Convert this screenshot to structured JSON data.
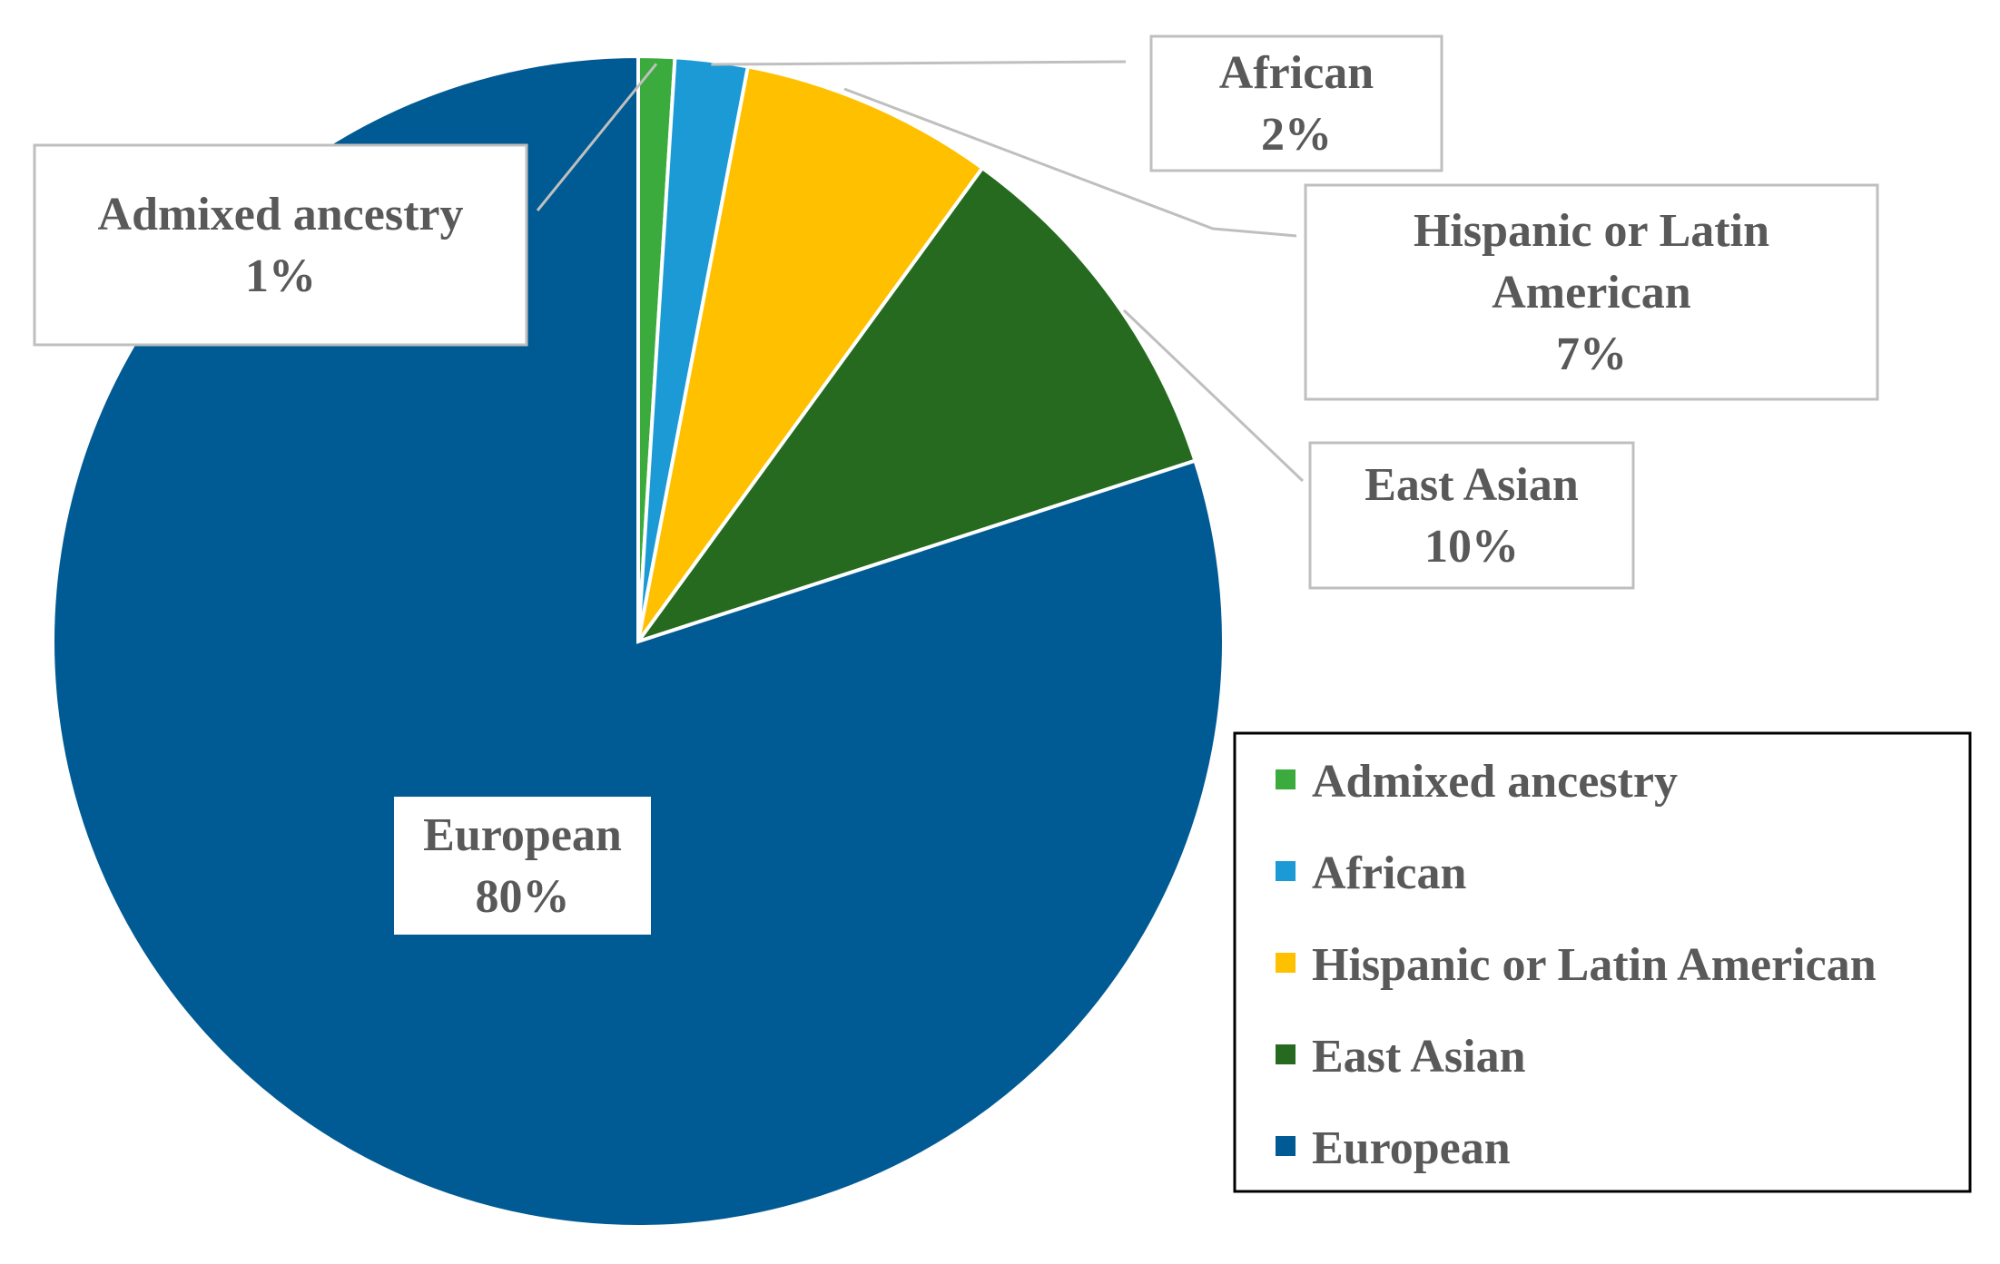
{
  "chart_data": {
    "type": "pie",
    "slices": [
      {
        "label": "Admixed ancestry",
        "value": 1,
        "percent_label": "1%",
        "color": "#3aab3c"
      },
      {
        "label": "African",
        "value": 2,
        "percent_label": "2%",
        "color": "#1b9ad6"
      },
      {
        "label": "Hispanic or Latin American",
        "value": 7,
        "percent_label": "7%",
        "color": "#ffc000"
      },
      {
        "label": "East Asian",
        "value": 10,
        "percent_label": "10%",
        "color": "#256a1f"
      },
      {
        "label": "European",
        "value": 80,
        "percent_label": "80%",
        "color": "#005a93"
      }
    ],
    "legend": {
      "placement": "bottom-right",
      "entries": [
        "Admixed ancestry",
        "African",
        "Hispanic or Latin American",
        "East Asian",
        "European"
      ]
    }
  }
}
